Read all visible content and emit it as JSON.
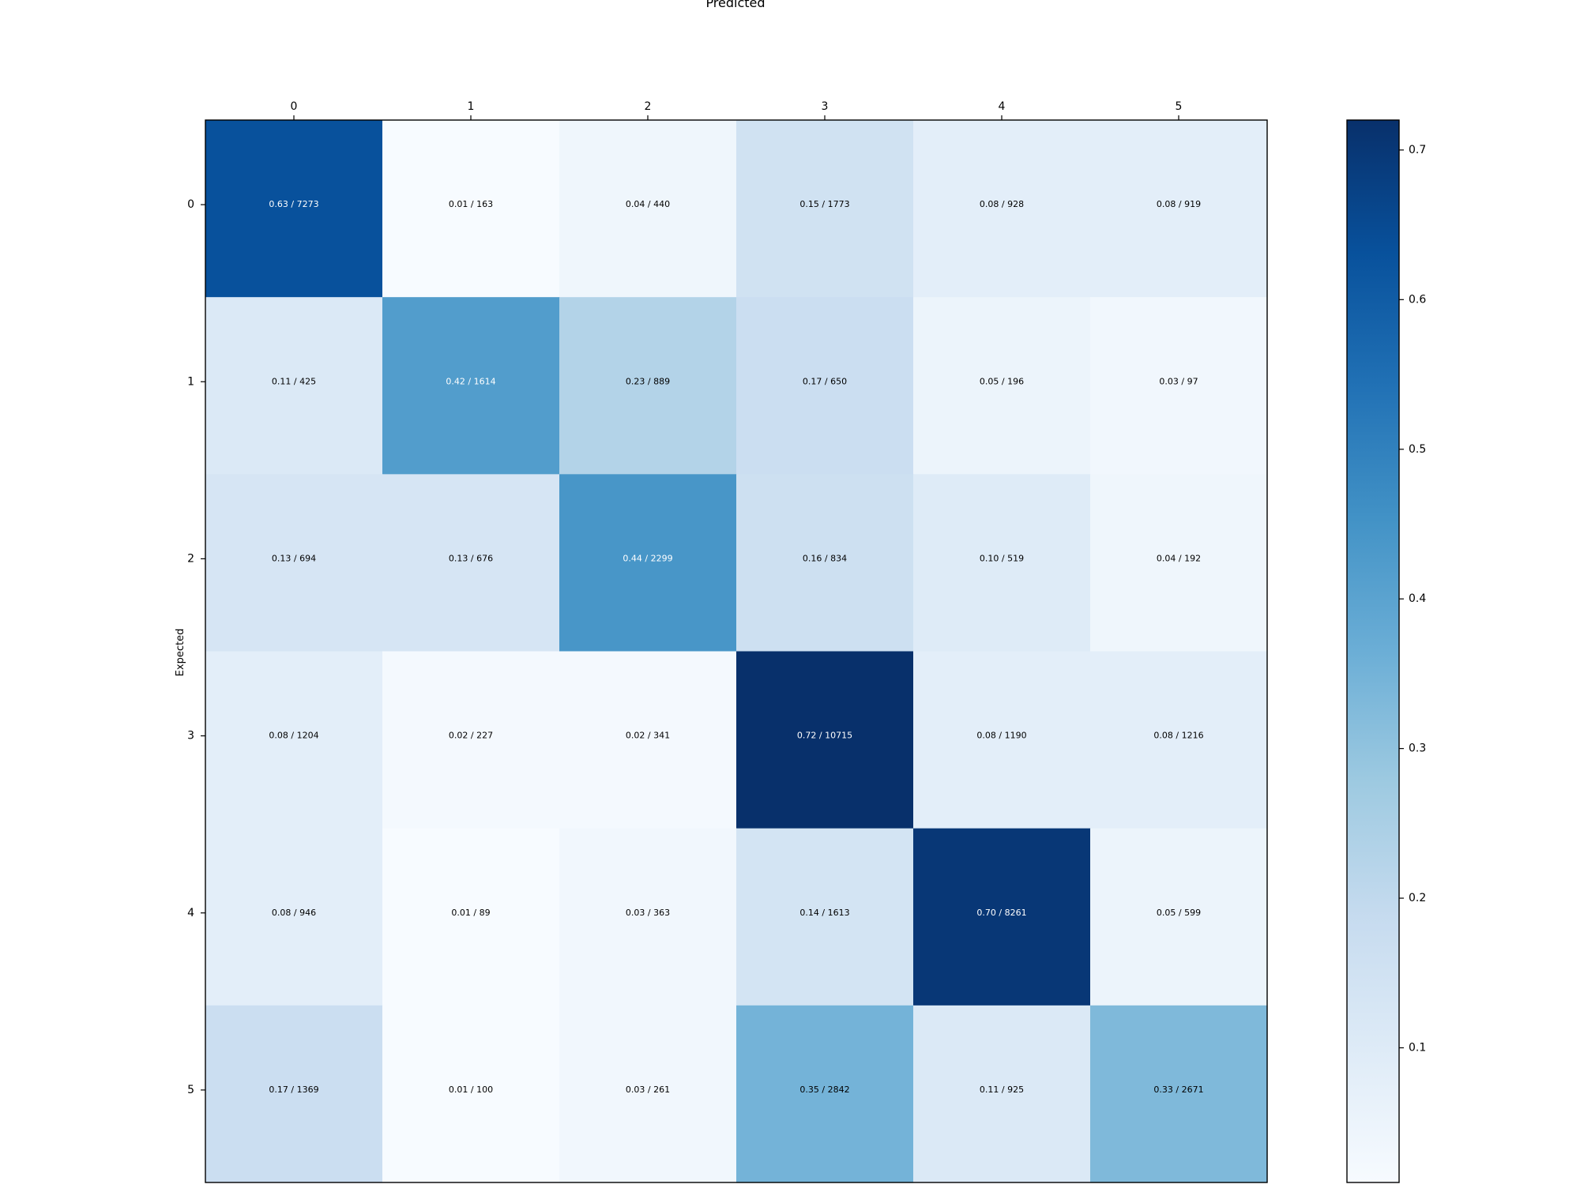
{
  "chart_data": {
    "type": "heatmap",
    "title": "",
    "xlabel": "Predicted",
    "ylabel": "Expected",
    "x_categories": [
      "0",
      "1",
      "2",
      "3",
      "4",
      "5"
    ],
    "y_categories": [
      "0",
      "1",
      "2",
      "3",
      "4",
      "5"
    ],
    "values": [
      [
        0.63,
        0.01,
        0.04,
        0.15,
        0.08,
        0.08
      ],
      [
        0.11,
        0.42,
        0.23,
        0.17,
        0.05,
        0.03
      ],
      [
        0.13,
        0.13,
        0.44,
        0.16,
        0.1,
        0.04
      ],
      [
        0.08,
        0.02,
        0.02,
        0.72,
        0.08,
        0.08
      ],
      [
        0.08,
        0.01,
        0.03,
        0.14,
        0.7,
        0.05
      ],
      [
        0.17,
        0.01,
        0.03,
        0.35,
        0.11,
        0.33
      ]
    ],
    "counts": [
      [
        7273,
        163,
        440,
        1773,
        928,
        919
      ],
      [
        425,
        1614,
        889,
        650,
        196,
        97
      ],
      [
        694,
        676,
        2299,
        834,
        519,
        192
      ],
      [
        1204,
        227,
        341,
        10715,
        1190,
        1216
      ],
      [
        946,
        89,
        363,
        1613,
        8261,
        599
      ],
      [
        1369,
        100,
        261,
        2842,
        925,
        2671
      ]
    ],
    "cell_labels": [
      [
        "0.63 / 7273",
        "0.01 / 163",
        "0.04 / 440",
        "0.15 / 1773",
        "0.08 / 928",
        "0.08 / 919"
      ],
      [
        "0.11 / 425",
        "0.42 / 1614",
        "0.23 / 889",
        "0.17 / 650",
        "0.05 / 196",
        "0.03 / 97"
      ],
      [
        "0.13 / 694",
        "0.13 / 676",
        "0.44 / 2299",
        "0.16 / 834",
        "0.10 / 519",
        "0.04 / 192"
      ],
      [
        "0.08 / 1204",
        "0.02 / 227",
        "0.02 / 341",
        "0.72 / 10715",
        "0.08 / 1190",
        "0.08 / 1216"
      ],
      [
        "0.08 / 946",
        "0.01 / 89",
        "0.03 / 363",
        "0.14 / 1613",
        "0.70 / 8261",
        "0.05 / 599"
      ],
      [
        "0.17 / 1369",
        "0.01 / 100",
        "0.03 / 261",
        "0.35 / 2842",
        "0.11 / 925",
        "0.33 / 2671"
      ]
    ],
    "colormap": "Blues",
    "color_range": [
      0.01,
      0.72
    ],
    "colorbar_ticks": [
      "0.1",
      "0.2",
      "0.3",
      "0.4",
      "0.5",
      "0.6",
      "0.7"
    ],
    "grid": false,
    "x_axis_position": "top",
    "colorbar_position": "right"
  }
}
